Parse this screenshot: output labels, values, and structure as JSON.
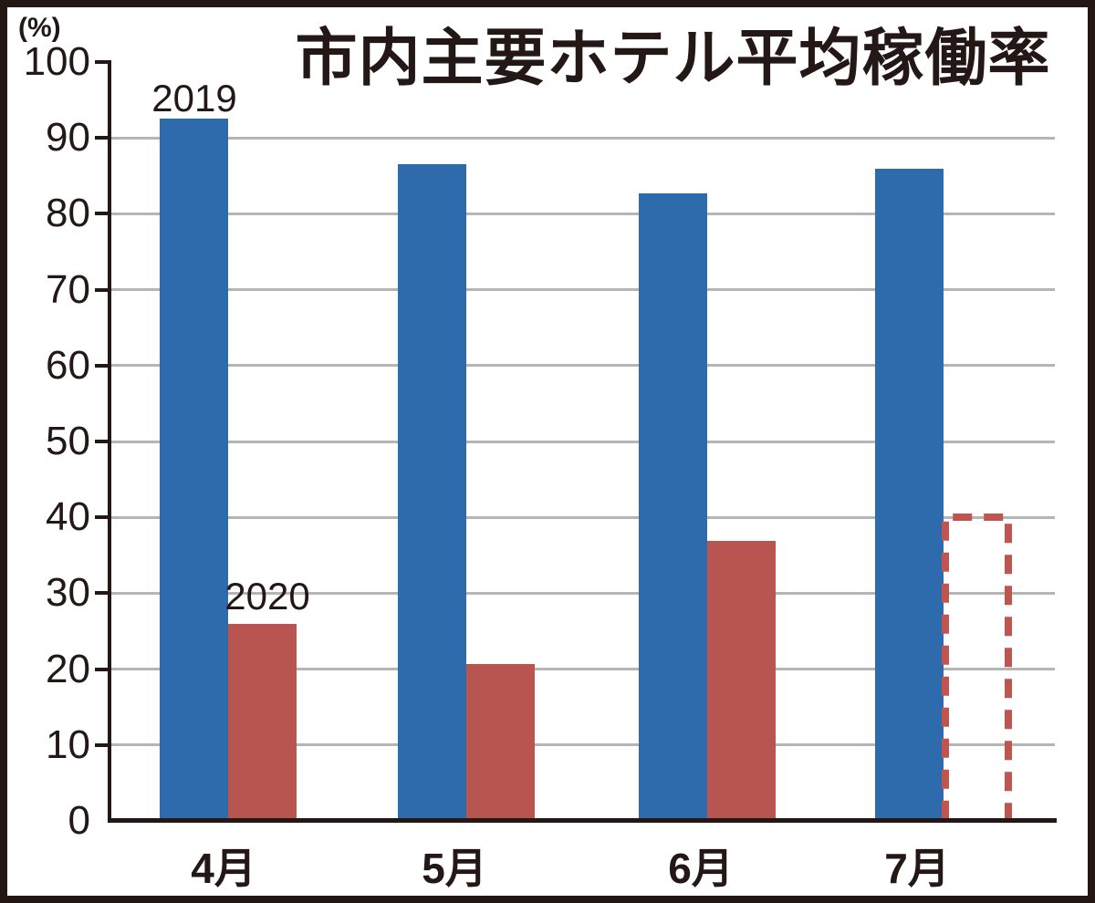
{
  "frame": {
    "border_color": "#221713",
    "background": "#ffffff"
  },
  "chart_data": {
    "type": "bar",
    "title": "市内主要ホテル平均稼働率",
    "y_unit_label": "(%)",
    "categories": [
      "4月",
      "5月",
      "6月",
      "7月"
    ],
    "series": [
      {
        "name": "2019",
        "color": "#2e6bad",
        "values": [
          92.5,
          86.5,
          82.7,
          85.9
        ]
      },
      {
        "name": "2020",
        "color": "#b85551",
        "values": [
          26.0,
          20.7,
          36.9,
          40.0
        ],
        "dashed_outline_indices": [
          3
        ],
        "dashed_outline_color": "#c0544e"
      }
    ],
    "ylim": [
      0,
      100
    ],
    "ytick_step": 10,
    "grid": "horizontal",
    "grid_color": "#b5b5b5",
    "text_color": "#231815",
    "axis_color": "#231815",
    "legend": "inline labels above first pair of bars"
  }
}
